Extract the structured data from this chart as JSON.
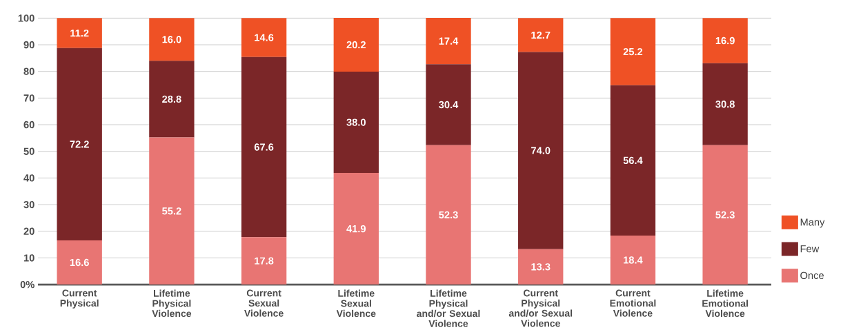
{
  "chart_data": {
    "type": "bar",
    "stacked": true,
    "categories": [
      "Current Physical",
      "Lifetime Physical Violence",
      "Current Sexual Violence",
      "Lifetime Sexual Violence",
      "Lifetime Physical and/or Sexual Violence",
      "Current Physical and/or Sexual Violence",
      "Current Emotional Violence",
      "Lifetime Emotional Violence"
    ],
    "series": [
      {
        "name": "Once",
        "color": "#e87573",
        "values": [
          16.6,
          55.2,
          17.8,
          41.9,
          52.3,
          13.3,
          18.4,
          52.3
        ],
        "value_labels": [
          "16.6",
          "55.2",
          "17.8",
          "41.9",
          "52.3",
          "13.3",
          "18.4",
          "52.3"
        ]
      },
      {
        "name": "Few",
        "color": "#7b2628",
        "values": [
          72.2,
          28.8,
          67.6,
          38.0,
          30.4,
          74.0,
          56.4,
          30.8
        ],
        "value_labels": [
          "72.2",
          "28.8",
          "67.6",
          "38.0",
          "30.4",
          "74.0",
          "56.4",
          "30.8"
        ]
      },
      {
        "name": "Many",
        "color": "#ef5125",
        "values": [
          11.2,
          16.0,
          14.6,
          20.2,
          17.4,
          12.7,
          25.2,
          16.9
        ],
        "value_labels": [
          "11.2",
          "16.0",
          "14.6",
          "20.2",
          "17.4",
          "12.7",
          "25.2",
          "16.9"
        ]
      }
    ],
    "ylim": [
      0,
      100
    ],
    "yticks": [
      {
        "value": 0,
        "label": "0%"
      },
      10,
      20,
      30,
      40,
      50,
      60,
      70,
      80,
      90,
      100
    ],
    "grid": "y",
    "legend": "right"
  }
}
